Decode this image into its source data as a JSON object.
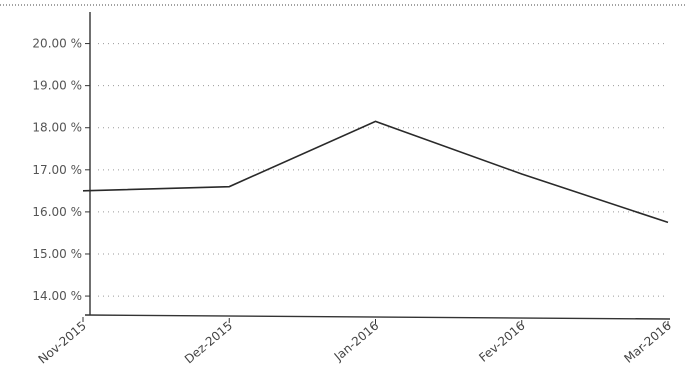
{
  "chart_data": {
    "type": "line",
    "categories": [
      "Nov-2015",
      "Dez-2015",
      "Jan-2016",
      "Fev-2016",
      "Mar-2016"
    ],
    "series": [
      {
        "values": [
          16.5,
          16.6,
          18.15,
          16.9,
          15.75
        ]
      }
    ],
    "y_ticks": [
      "14.00 %",
      "15.00 %",
      "16.00 %",
      "17.00 %",
      "18.00 %",
      "19.00 %",
      "20.00 %"
    ],
    "ylim": [
      13.55,
      20.75
    ],
    "grid": true,
    "legend": "none",
    "line_color": "#2a2a2a"
  }
}
